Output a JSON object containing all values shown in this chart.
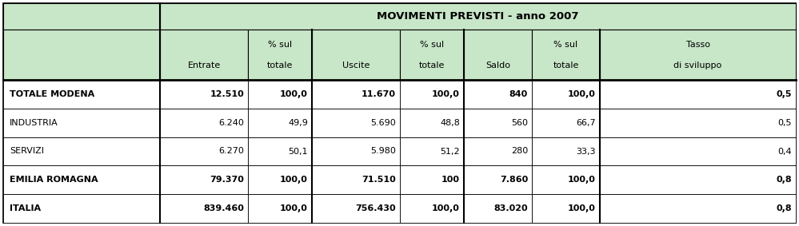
{
  "title": "MOVIMENTI PREVISTI - anno 2007",
  "header_bg": "#c8e6c8",
  "white_bg": "#ffffff",
  "row_labels": [
    "TOTALE MODENA",
    "INDUSTRIA",
    "SERVIZI",
    "EMILIA ROMAGNA",
    "ITALIA"
  ],
  "row_bold": [
    true,
    false,
    false,
    true,
    true
  ],
  "data": [
    [
      "12.510",
      "100,0",
      "11.670",
      "100,0",
      "840",
      "100,0",
      "0,5"
    ],
    [
      "6.240",
      "49,9",
      "5.690",
      "48,8",
      "560",
      "66,7",
      "0,5"
    ],
    [
      "6.270",
      "50,1",
      "5.980",
      "51,2",
      "280",
      "33,3",
      "0,4"
    ],
    [
      "79.370",
      "100,0",
      "71.510",
      "100",
      "7.860",
      "100,0",
      "0,8"
    ],
    [
      "839.460",
      "100,0",
      "756.430",
      "100,0",
      "83.020",
      "100,0",
      "0,8"
    ]
  ],
  "font_size": 8.0,
  "title_font_size": 9.5,
  "fig_width": 9.99,
  "fig_height": 2.83,
  "dpi": 100
}
